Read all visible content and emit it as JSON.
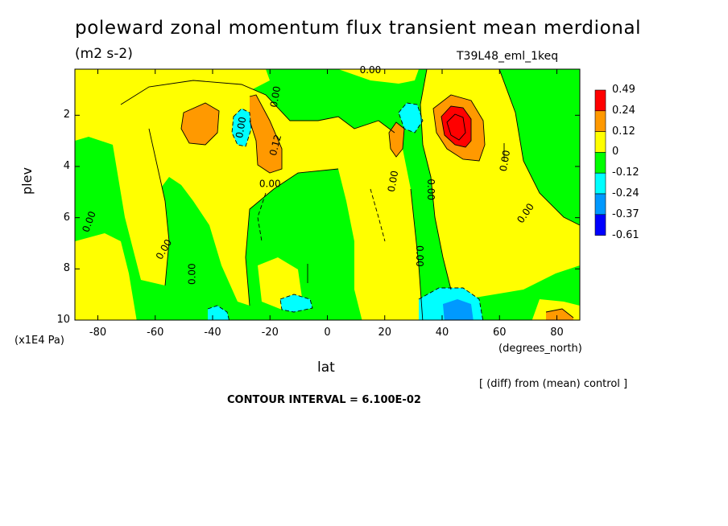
{
  "header": {
    "title": "poleward zonal momentum flux transient mean merdional",
    "units": "(m2 s-2)",
    "experiment": "T39L48_eml_1keq"
  },
  "footer": {
    "diff_note": "[ (diff) from (mean) control ]",
    "contour_interval": "CONTOUR INTERVAL = 6.100E-02"
  },
  "chart_data": {
    "type": "heatmap",
    "subtype": "filled-contour",
    "xlabel": "lat",
    "x_unit_label": "(degrees_north)",
    "ylabel": "plev",
    "y_unit_label": "(x1E4 Pa)",
    "xlim": [
      -88,
      88
    ],
    "ylim": [
      10,
      0.2
    ],
    "x_ticks": [
      -80,
      -60,
      -40,
      -20,
      0,
      20,
      40,
      60,
      80
    ],
    "x_tick_labels": [
      "-80",
      "-60",
      "-40",
      "-20",
      "0",
      "20",
      "40",
      "60",
      "80"
    ],
    "y_ticks": [
      2,
      4,
      6,
      8,
      10
    ],
    "y_tick_labels": [
      "2",
      "4",
      "6",
      "8",
      "10"
    ],
    "legend": {
      "placement": "right",
      "levels": [
        "0.49",
        "0.24",
        "0.12",
        "0",
        "-0.12",
        "-0.24",
        "-0.37",
        "-0.61"
      ],
      "colors": [
        "#ff0000",
        "#ff9900",
        "#ffff00",
        "#00ff00",
        "#00ffff",
        "#0099ff",
        "#0000ff"
      ]
    },
    "contour_labels": [
      {
        "text": "0.00",
        "lat": -82,
        "plev": 6.2,
        "angle": -70
      },
      {
        "text": "0.00",
        "lat": -56,
        "plev": 7.3,
        "angle": -60
      },
      {
        "text": "0.00",
        "lat": -46,
        "plev": 8.2,
        "angle": -90
      },
      {
        "text": "0.00",
        "lat": -29,
        "plev": 2.5,
        "angle": -80
      },
      {
        "text": "0.00",
        "lat": -17,
        "plev": 1.3,
        "angle": -80
      },
      {
        "text": "0.12",
        "lat": -17,
        "plev": 3.2,
        "angle": -75
      },
      {
        "text": "0.00",
        "lat": -20,
        "plev": 4.8,
        "angle": 0
      },
      {
        "text": "0.00",
        "lat": 15,
        "plev": 0.35,
        "angle": 0
      },
      {
        "text": "0.00",
        "lat": 24,
        "plev": 4.6,
        "angle": -80
      },
      {
        "text": "0.00",
        "lat": 35,
        "plev": 4.9,
        "angle": 90
      },
      {
        "text": "0.00",
        "lat": 31,
        "plev": 7.5,
        "angle": 90
      },
      {
        "text": "0.00",
        "lat": 63,
        "plev": 3.8,
        "angle": -80
      },
      {
        "text": "0.00",
        "lat": 70,
        "plev": 5.9,
        "angle": -55
      }
    ]
  }
}
